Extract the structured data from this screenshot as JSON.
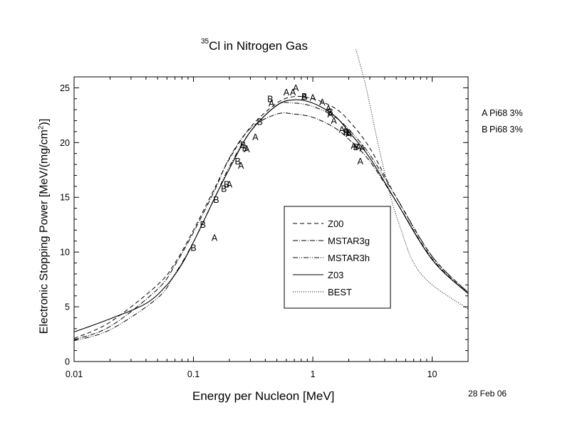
{
  "title": {
    "sup": "35",
    "text": "Cl in Nitrogen Gas"
  },
  "ylabel": {
    "main": "Electronic Stopping Power [MeV/(mg/cm",
    "sup": "2",
    "close": ")]"
  },
  "date_label": "28 Feb 06",
  "data_sources": [
    {
      "code": "A",
      "label": "Pi68  3%"
    },
    {
      "code": "B",
      "label": "Pi68  3%"
    }
  ],
  "chart_data": {
    "type": "line",
    "title": "35Cl in Nitrogen Gas",
    "xlabel": "Energy per Nucleon [MeV]",
    "ylabel": "Electronic Stopping Power [MeV/(mg/cm2)]",
    "xscale": "log",
    "xlim": [
      0.01,
      20
    ],
    "ylim": [
      0,
      26
    ],
    "xticks": [
      0.01,
      0.1,
      1,
      10
    ],
    "xtick_labels": [
      "0.01",
      "0.1",
      "1",
      "10"
    ],
    "yticks": [
      0,
      5,
      10,
      15,
      20,
      25
    ],
    "ytick_labels": [
      "0",
      "5",
      "10",
      "15",
      "20",
      "25"
    ],
    "grid": false,
    "legend_position": "center-right",
    "series": [
      {
        "name": "Z00",
        "dash": "dashed",
        "color": "#000000",
        "points": [
          [
            0.01,
            2.1
          ],
          [
            0.02,
            3.6
          ],
          [
            0.05,
            7.0
          ],
          [
            0.07,
            9.0
          ],
          [
            0.1,
            12.0
          ],
          [
            0.15,
            15.8
          ],
          [
            0.2,
            18.5
          ],
          [
            0.3,
            21.4
          ],
          [
            0.5,
            23.6
          ],
          [
            0.7,
            24.2
          ],
          [
            1.0,
            24.0
          ],
          [
            1.5,
            23.2
          ],
          [
            2.0,
            22.0
          ],
          [
            3.0,
            19.5
          ],
          [
            5.0,
            15.0
          ],
          [
            10.0,
            9.6
          ],
          [
            20.0,
            6.3
          ]
        ]
      },
      {
        "name": "MSTAR3g",
        "dash": "dashdot",
        "color": "#000000",
        "points": [
          [
            0.01,
            2.0
          ],
          [
            0.02,
            3.2
          ],
          [
            0.05,
            6.6
          ],
          [
            0.07,
            8.8
          ],
          [
            0.1,
            11.8
          ],
          [
            0.15,
            15.6
          ],
          [
            0.2,
            18.6
          ],
          [
            0.3,
            21.3
          ],
          [
            0.5,
            22.6
          ],
          [
            0.7,
            22.6
          ],
          [
            1.0,
            22.3
          ],
          [
            1.5,
            21.4
          ],
          [
            2.0,
            20.3
          ],
          [
            3.0,
            18.3
          ],
          [
            5.0,
            14.6
          ],
          [
            10.0,
            9.4
          ],
          [
            20.0,
            6.2
          ]
        ]
      },
      {
        "name": "MSTAR3h",
        "dash": "dashdotdot",
        "color": "#000000",
        "points": [
          [
            0.01,
            1.9
          ],
          [
            0.02,
            2.9
          ],
          [
            0.05,
            5.8
          ],
          [
            0.07,
            8.0
          ],
          [
            0.1,
            10.9
          ],
          [
            0.15,
            14.9
          ],
          [
            0.2,
            17.8
          ],
          [
            0.3,
            21.0
          ],
          [
            0.5,
            23.4
          ],
          [
            0.7,
            23.6
          ],
          [
            1.0,
            23.3
          ],
          [
            1.5,
            22.4
          ],
          [
            2.0,
            21.2
          ],
          [
            3.0,
            18.9
          ],
          [
            5.0,
            15.0
          ],
          [
            10.0,
            9.6
          ],
          [
            20.0,
            6.3
          ]
        ]
      },
      {
        "name": "Z03",
        "dash": "solid",
        "color": "#000000",
        "points": [
          [
            0.01,
            2.7
          ],
          [
            0.02,
            3.9
          ],
          [
            0.04,
            5.3
          ],
          [
            0.06,
            7.0
          ],
          [
            0.08,
            8.9
          ],
          [
            0.1,
            10.9
          ],
          [
            0.15,
            14.9
          ],
          [
            0.2,
            17.6
          ],
          [
            0.3,
            21.0
          ],
          [
            0.5,
            23.4
          ],
          [
            0.7,
            23.9
          ],
          [
            1.0,
            23.6
          ],
          [
            1.5,
            22.5
          ],
          [
            2.0,
            21.0
          ],
          [
            3.0,
            18.6
          ],
          [
            5.0,
            14.6
          ],
          [
            10.0,
            9.3
          ],
          [
            20.0,
            6.2
          ]
        ]
      },
      {
        "name": "BEST",
        "dash": "dotted",
        "color": "#000000",
        "points": [
          [
            2.3,
            28.5
          ],
          [
            2.8,
            25.0
          ],
          [
            3.5,
            20.0
          ],
          [
            4.5,
            15.0
          ],
          [
            5.5,
            12.0
          ],
          [
            7.0,
            9.0
          ],
          [
            10.0,
            7.0
          ],
          [
            20.0,
            4.8
          ]
        ]
      }
    ],
    "markers": [
      {
        "code": "A",
        "points": [
          [
            0.15,
            11.3
          ],
          [
            0.2,
            16.2
          ],
          [
            0.25,
            17.9
          ],
          [
            0.28,
            19.4
          ],
          [
            0.33,
            20.5
          ],
          [
            0.45,
            23.6
          ],
          [
            0.6,
            24.6
          ],
          [
            0.68,
            24.6
          ],
          [
            0.72,
            25.0
          ],
          [
            0.85,
            24.2
          ],
          [
            1.0,
            24.1
          ],
          [
            1.2,
            23.7
          ],
          [
            1.35,
            23.1
          ],
          [
            1.4,
            22.6
          ],
          [
            1.5,
            22.0
          ],
          [
            1.75,
            21.2
          ],
          [
            1.9,
            21.0
          ],
          [
            2.0,
            20.8
          ],
          [
            2.2,
            19.7
          ],
          [
            2.4,
            19.6
          ],
          [
            2.6,
            19.5
          ],
          [
            2.5,
            18.3
          ]
        ]
      },
      {
        "code": "B",
        "points": [
          [
            0.1,
            10.4
          ],
          [
            0.12,
            12.5
          ],
          [
            0.155,
            14.8
          ],
          [
            0.18,
            15.8
          ],
          [
            0.19,
            16.2
          ],
          [
            0.235,
            18.3
          ],
          [
            0.26,
            19.8
          ],
          [
            0.27,
            19.5
          ],
          [
            0.36,
            21.9
          ],
          [
            0.44,
            24.0
          ],
          [
            0.85,
            24.2
          ],
          [
            1.4,
            22.8
          ],
          [
            1.9,
            21.0
          ],
          [
            2.0,
            20.9
          ],
          [
            2.3,
            19.6
          ]
        ]
      }
    ]
  }
}
